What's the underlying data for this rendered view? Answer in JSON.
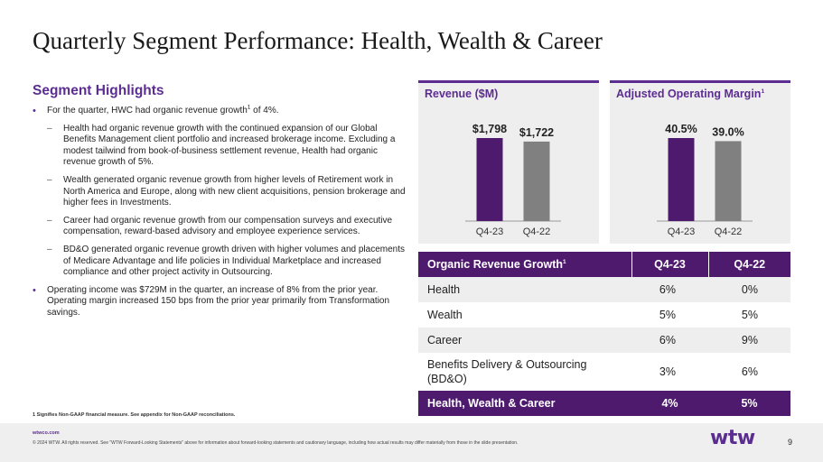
{
  "title": "Quarterly Segment Performance: Health, Wealth & Career",
  "highlights": {
    "heading": "Segment Highlights",
    "bullet1": {
      "pre": "For the quarter, HWC had organic revenue growth",
      "sup": "1",
      "post": " of 4%."
    },
    "sub1": "Health had organic revenue growth with the continued expansion of our Global Benefits Management client portfolio and increased brokerage income. Excluding a modest tailwind from book-of-business settlement revenue, Health had organic revenue growth of 5%.",
    "sub2": "Wealth generated organic revenue growth from higher levels of Retirement work in North America and Europe, along with new client acquisitions, pension brokerage and higher fees in Investments.",
    "sub3": "Career had organic revenue growth from our compensation surveys and executive compensation, reward-based advisory and employee experience services.",
    "sub4": "BD&O generated organic revenue growth driven with higher volumes and placements of Medicare Advantage and life policies in Individual Marketplace and increased compliance and other project activity in Outsourcing.",
    "bullet2": "Operating income was $729M in the quarter, an increase of 8% from the prior year. Operating margin increased 150 bps from the prior year primarily from Transformation savings."
  },
  "footnote": "1 Signifies Non-GAAP financial measure. See appendix for Non-GAAP reconciliations.",
  "footer": {
    "site": "wtwco.com",
    "copyright": "© 2024 WTW. All rights reserved. See \"WTW Forward-Looking Statements\" above for information about forward-looking statements and cautionary language, including how actual results may differ materially from those in the slide presentation.",
    "logo": "wtw",
    "page": "9"
  },
  "colors": {
    "accent": "#5c2d91",
    "bar_current": "#4e1a6e",
    "bar_prior": "#808080",
    "panel_bg": "#eeeeee"
  },
  "chart_data": [
    {
      "type": "bar",
      "title": "Revenue ($M)",
      "categories": [
        "Q4-23",
        "Q4-22"
      ],
      "values": [
        1798,
        1722
      ],
      "labels": [
        "$1,798",
        "$1,722"
      ]
    },
    {
      "type": "bar",
      "title": "Adjusted Operating Margin",
      "title_sup": "1",
      "categories": [
        "Q4-23",
        "Q4-22"
      ],
      "values": [
        40.5,
        39.0
      ],
      "labels": [
        "40.5%",
        "39.0%"
      ]
    }
  ],
  "table": {
    "header": {
      "label": "Organic Revenue Growth",
      "sup": "1",
      "q1": "Q4-23",
      "q2": "Q4-22"
    },
    "rows": [
      {
        "label": "Health",
        "q1": "6%",
        "q2": "0%"
      },
      {
        "label": "Wealth",
        "q1": "5%",
        "q2": "5%"
      },
      {
        "label": "Career",
        "q1": "6%",
        "q2": "9%"
      },
      {
        "label": "Benefits Delivery & Outsourcing (BD&O)",
        "q1": "3%",
        "q2": "6%"
      }
    ],
    "total": {
      "label": "Health, Wealth & Career",
      "q1": "4%",
      "q2": "5%"
    }
  }
}
